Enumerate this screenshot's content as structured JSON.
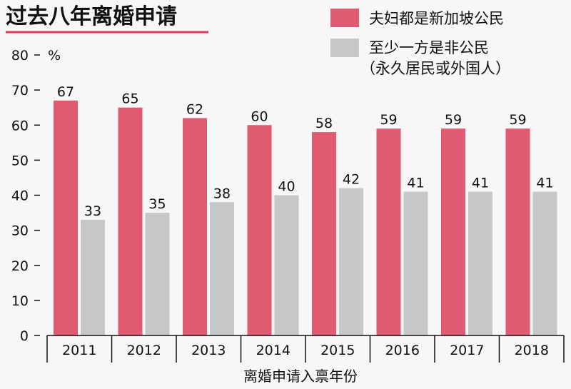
{
  "chart_data": {
    "type": "bar",
    "title": "过去八年离婚申请",
    "xlabel": "离婚申请入禀年份",
    "ylabel": "%",
    "ylim": [
      0,
      80
    ],
    "yticks": [
      0,
      10,
      20,
      30,
      40,
      50,
      60,
      70,
      80
    ],
    "categories": [
      "2011",
      "2012",
      "2013",
      "2014",
      "2015",
      "2016",
      "2017",
      "2018"
    ],
    "series": [
      {
        "name": "夫妇都是新加坡公民",
        "values": [
          67,
          65,
          62,
          60,
          58,
          59,
          59,
          59
        ],
        "color": "#e05a72"
      },
      {
        "name": "至少一方是非公民",
        "name_line2": "（永久居民或外国人）",
        "values": [
          33,
          35,
          38,
          40,
          42,
          41,
          41,
          41
        ],
        "color": "#c6c7c9"
      }
    ],
    "legend_position": "top-right",
    "grid": false,
    "accent_color": "#d43d5c"
  }
}
